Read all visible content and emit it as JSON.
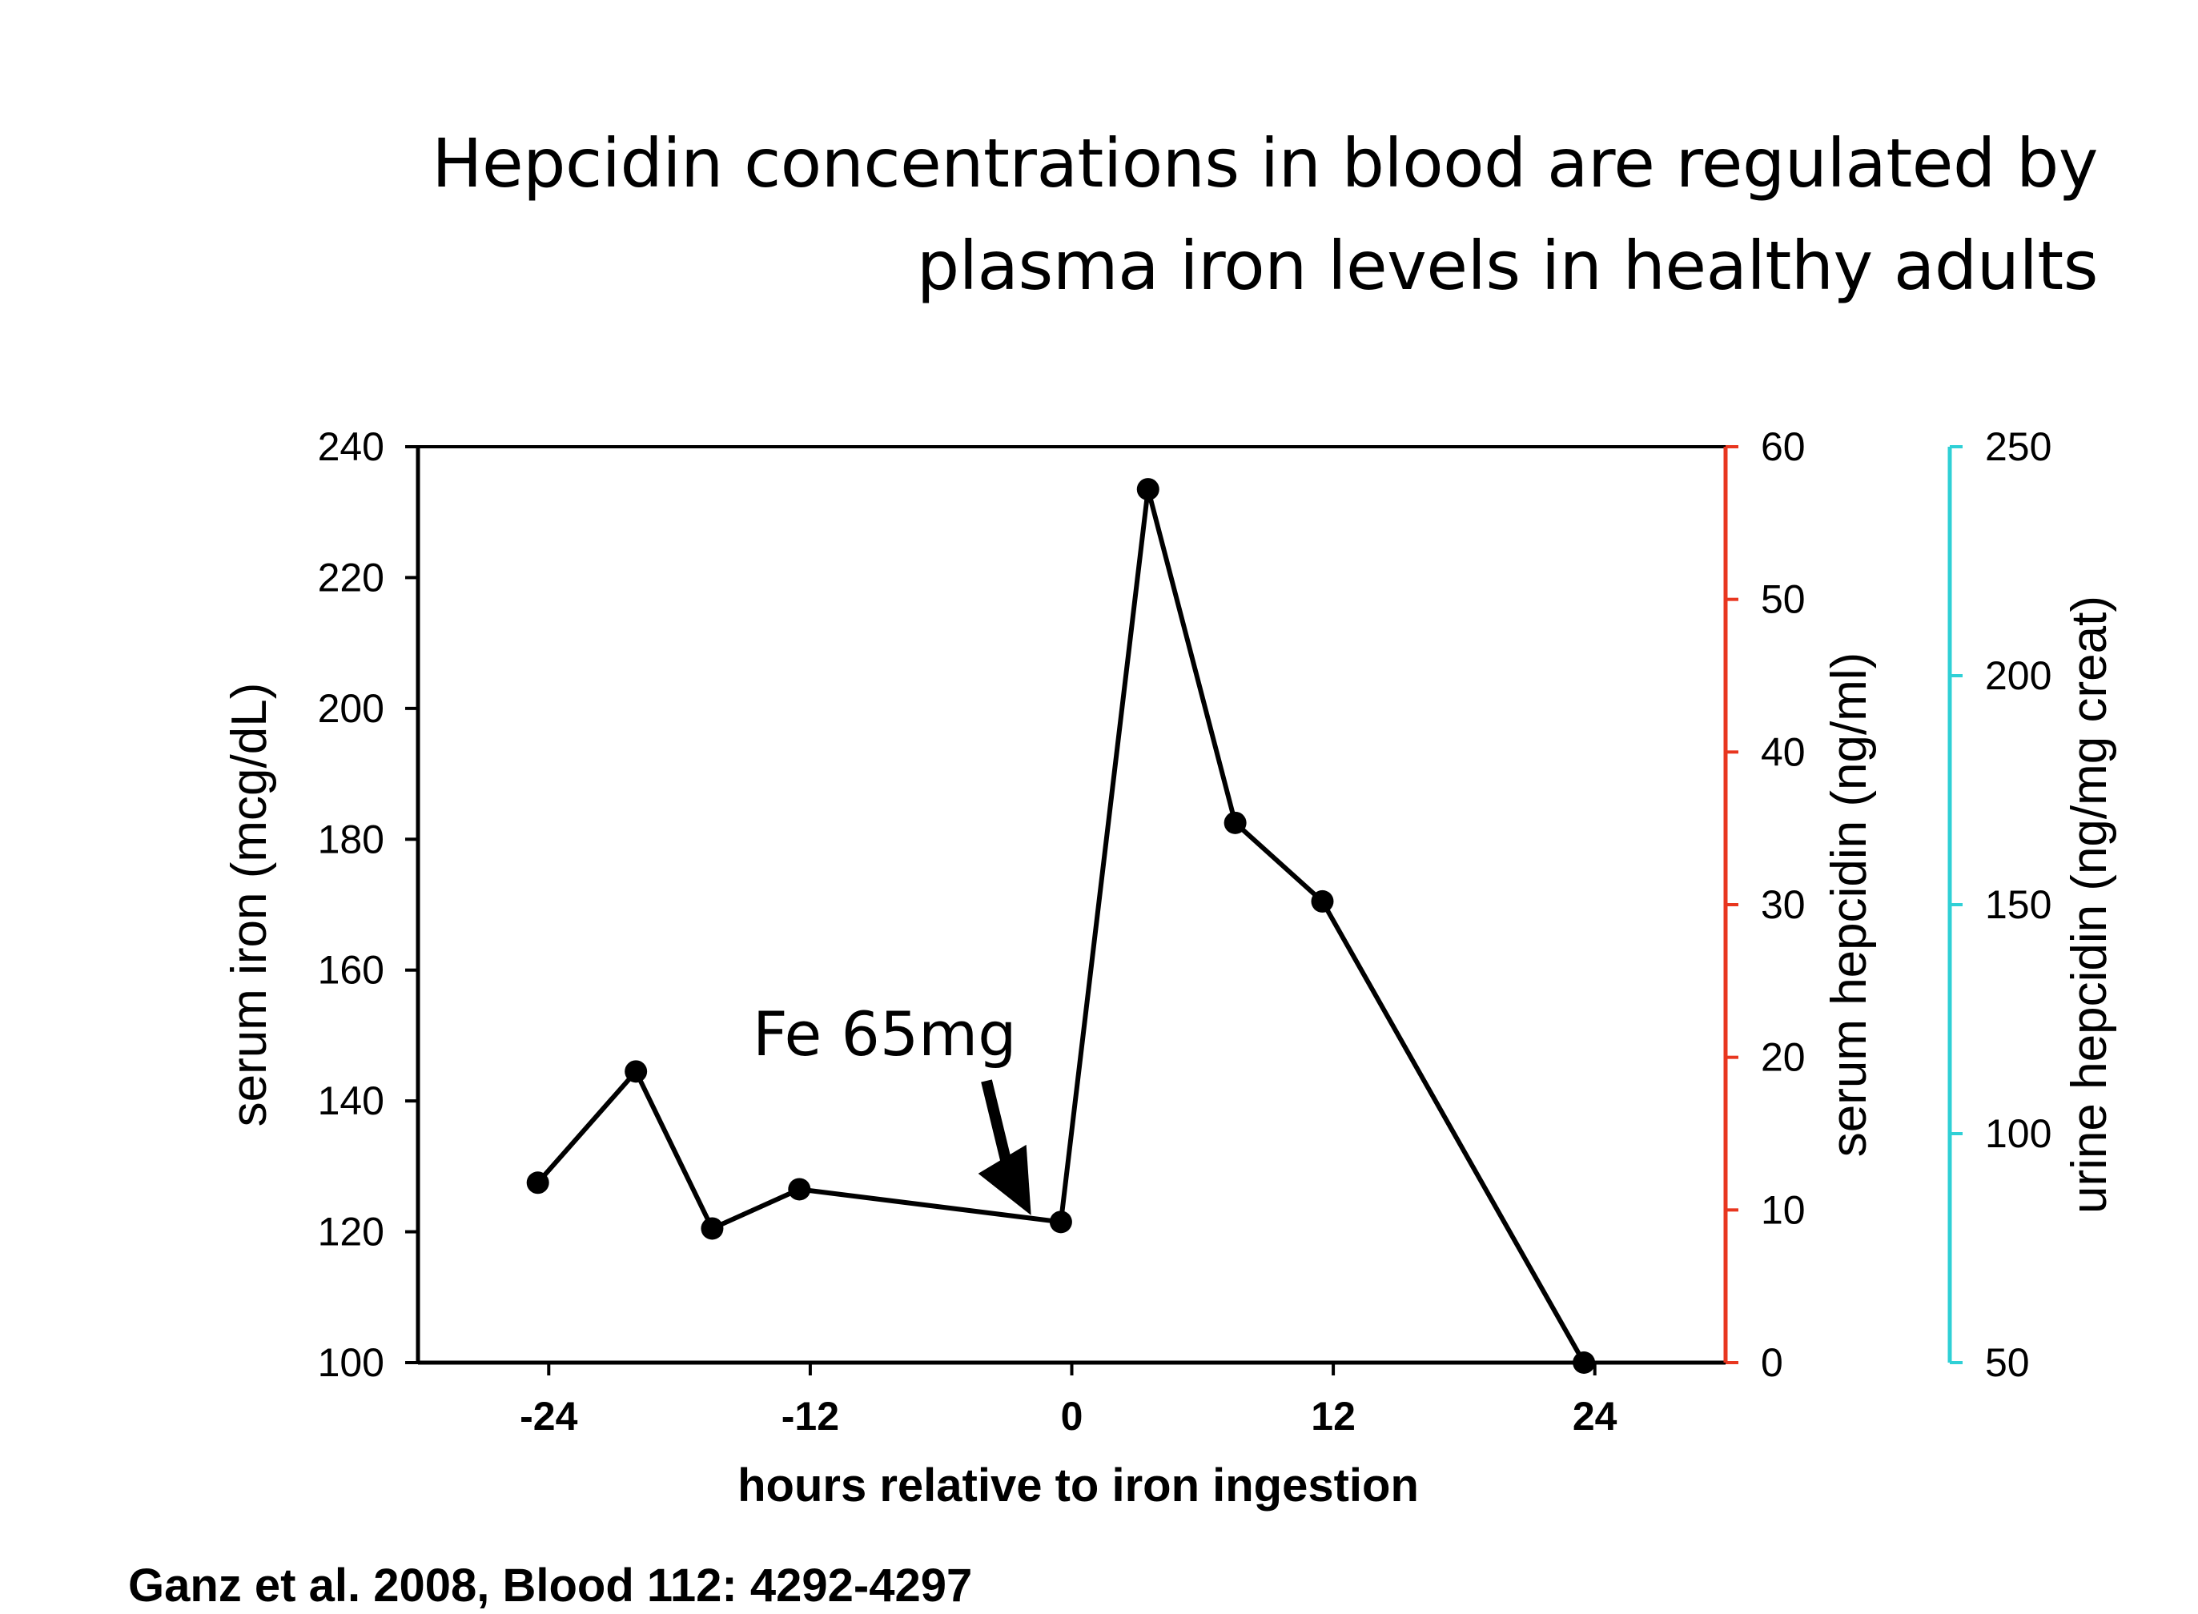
{
  "slide": {
    "title_line1": "Hepcidin concentrations in blood are regulated by",
    "title_line2": "plasma iron levels in healthy adults",
    "citation": "Ganz et al. 2008, Blood 112: 4292-4297"
  },
  "chart_data": {
    "type": "line",
    "xlabel": "hours relative to iron ingestion",
    "ylabel": "serum iron (mcg/dL)",
    "ylabel_right": "serum hepcidin (ng/ml)",
    "ylabel_right2": "urine hepcidin (ng/mg creat)",
    "xlim": [
      -30,
      30
    ],
    "ylim": [
      100,
      240
    ],
    "ylim_right": [
      0,
      60
    ],
    "ylim_right2": [
      50,
      250
    ],
    "x_ticks": [
      "-24",
      "-12",
      "0",
      "12",
      "24"
    ],
    "x_tick_values": [
      -24,
      -12,
      0,
      12,
      24
    ],
    "y_ticks": [
      "100",
      "120",
      "140",
      "160",
      "180",
      "200",
      "220",
      "240"
    ],
    "y_tick_values": [
      100,
      120,
      140,
      160,
      180,
      200,
      220,
      240
    ],
    "y_right_ticks": [
      "0",
      "10",
      "20",
      "30",
      "40",
      "50",
      "60"
    ],
    "y_right_tick_values": [
      0,
      10,
      20,
      30,
      40,
      50,
      60
    ],
    "y_right2_ticks": [
      "50",
      "100",
      "150",
      "200",
      "250"
    ],
    "y_right2_tick_values": [
      50,
      100,
      150,
      200,
      250
    ],
    "right_axis_color": "#e8361f",
    "right2_axis_color": "#2fd0d6",
    "series": [
      {
        "color": "#000000",
        "x": [
          -24.5,
          -20,
          -16.5,
          -12.5,
          -0.5,
          3.5,
          7.5,
          11.5,
          23.5
        ],
        "y": [
          127.5,
          144.5,
          120.5,
          126.5,
          121.5,
          233.5,
          182.5,
          170.5,
          100
        ]
      }
    ],
    "annotation": {
      "text": "Fe 65mg",
      "x": -1.5,
      "y": 124
    }
  }
}
